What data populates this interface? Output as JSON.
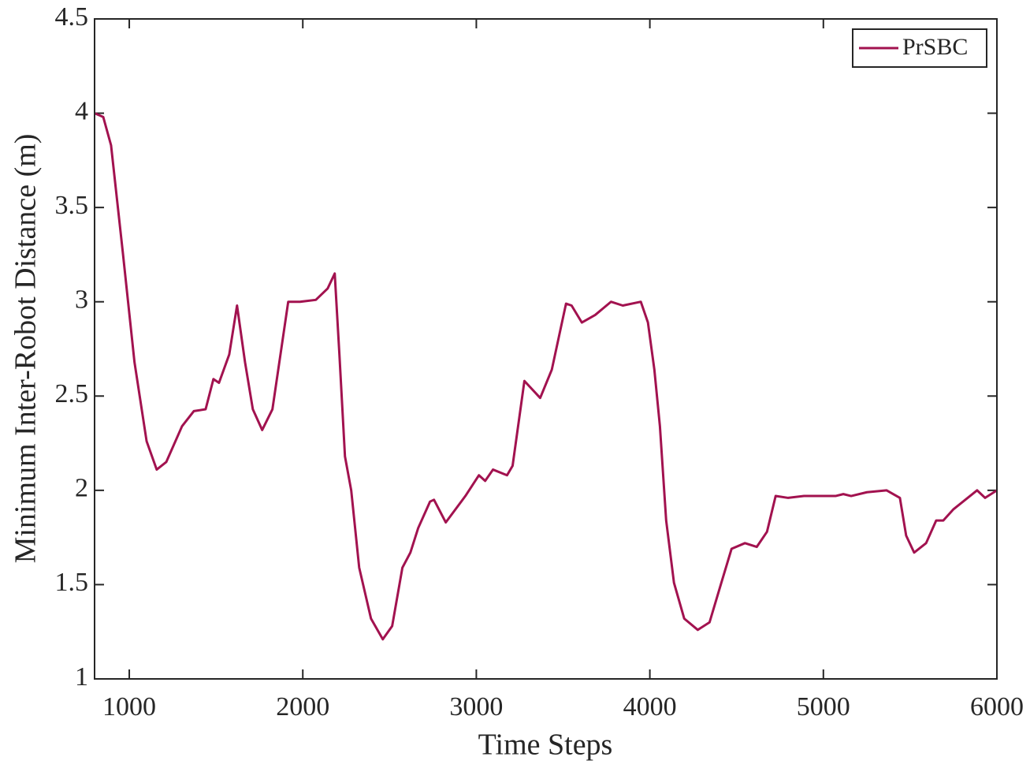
{
  "chart_data": {
    "type": "line",
    "xlabel": "Time Steps",
    "ylabel": "Minimum Inter-Robot Distance (m)",
    "x": [
      800,
      850,
      895,
      963,
      1030,
      1100,
      1158,
      1213,
      1304,
      1372,
      1440,
      1485,
      1517,
      1576,
      1621,
      1667,
      1712,
      1766,
      1825,
      1916,
      1984,
      2075,
      2143,
      2184,
      2211,
      2243,
      2279,
      2325,
      2393,
      2461,
      2515,
      2574,
      2620,
      2665,
      2733,
      2756,
      2824,
      2937,
      3015,
      3051,
      3096,
      3177,
      3209,
      3277,
      3368,
      3435,
      3517,
      3549,
      3608,
      3685,
      3776,
      3844,
      3948,
      3989,
      4026,
      4058,
      4094,
      4139,
      4198,
      4276,
      4344,
      4412,
      4471,
      4548,
      4616,
      4675,
      4725,
      4797,
      4888,
      5070,
      5115,
      5160,
      5251,
      5364,
      5441,
      5477,
      5523,
      5592,
      5650,
      5691,
      5750,
      5818,
      5886,
      5932,
      6000
    ],
    "series": [
      {
        "name": "PrSBC",
        "color": "#a2124f",
        "values": [
          4.0,
          3.98,
          3.83,
          3.26,
          2.68,
          2.26,
          2.11,
          2.15,
          2.34,
          2.42,
          2.43,
          2.59,
          2.57,
          2.72,
          2.98,
          2.68,
          2.43,
          2.32,
          2.43,
          3.0,
          3.0,
          3.01,
          3.07,
          3.15,
          2.72,
          2.18,
          2.0,
          1.59,
          1.32,
          1.21,
          1.28,
          1.59,
          1.67,
          1.8,
          1.94,
          1.95,
          1.83,
          1.97,
          2.08,
          2.05,
          2.11,
          2.08,
          2.13,
          2.58,
          2.49,
          2.64,
          2.99,
          2.98,
          2.89,
          2.93,
          3.0,
          2.98,
          3.0,
          2.89,
          2.64,
          2.34,
          1.84,
          1.51,
          1.32,
          1.26,
          1.3,
          1.51,
          1.69,
          1.72,
          1.7,
          1.78,
          1.97,
          1.96,
          1.97,
          1.97,
          1.98,
          1.97,
          1.99,
          2.0,
          1.96,
          1.76,
          1.67,
          1.72,
          1.84,
          1.84,
          1.9,
          1.95,
          2.0,
          1.96,
          2.0
        ]
      }
    ],
    "xlim": [
      800,
      6000
    ],
    "ylim": [
      1,
      4.5
    ],
    "xticks": [
      1000,
      2000,
      3000,
      4000,
      5000,
      6000
    ],
    "yticks": [
      1,
      1.5,
      2,
      2.5,
      3,
      3.5,
      4,
      4.5
    ],
    "grid": false,
    "legend": "northeast"
  }
}
